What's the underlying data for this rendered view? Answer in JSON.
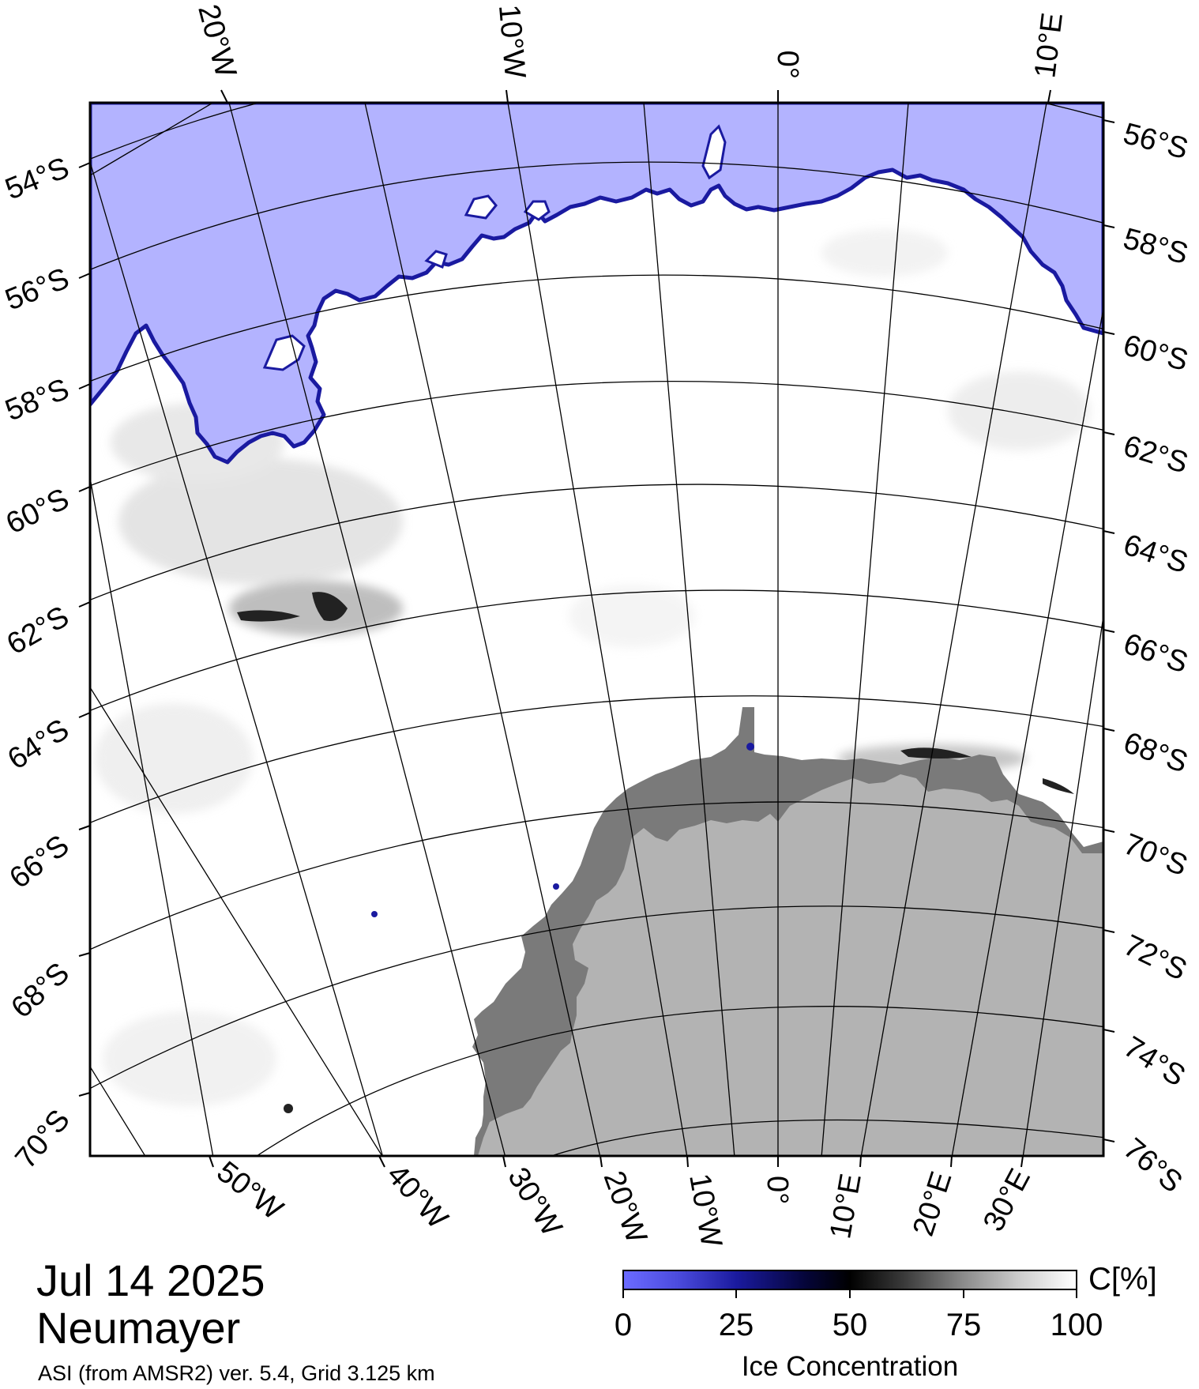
{
  "map": {
    "title_date": "Jul 14 2025",
    "title_station": "Neumayer",
    "subtitle": "ASI (from AMSR2) ver. 5.4,  Grid 3.125 km",
    "colors": {
      "open_water": "#b3b3ff",
      "ice_edge": "#1a1aa0",
      "sea_ice": "#ffffff",
      "ice_shelf": "#7a7a7a",
      "land": "#b3b3b3",
      "graticule": "#000000"
    },
    "top_lon_labels": [
      "20°W",
      "10°W",
      "0°",
      "10°E"
    ],
    "bottom_lon_labels": [
      "50°W",
      "40°W",
      "30°W",
      "20°W",
      "10°W",
      "0°",
      "10°E",
      "20°E",
      "30°E"
    ],
    "left_lat_labels": [
      "54°S",
      "56°S",
      "58°S",
      "60°S",
      "62°S",
      "64°S",
      "66°S",
      "68°S",
      "70°S"
    ],
    "right_lat_labels": [
      "56°S",
      "58°S",
      "60°S",
      "62°S",
      "64°S",
      "66°S",
      "68°S",
      "70°S",
      "72°S",
      "74°S",
      "76°S"
    ]
  },
  "colorbar": {
    "unit": "C[%]",
    "ticks": [
      "0",
      "25",
      "50",
      "75",
      "100"
    ],
    "label": "Ice Concentration"
  }
}
